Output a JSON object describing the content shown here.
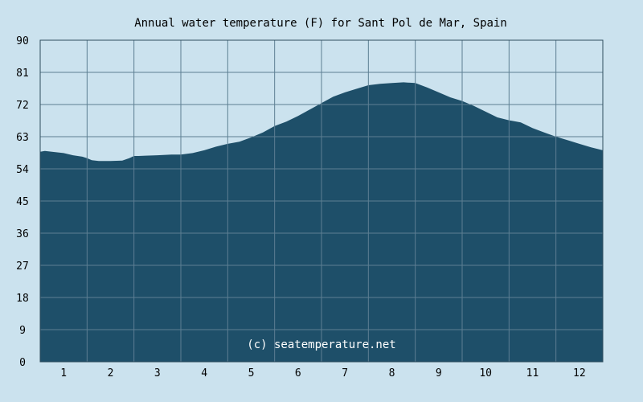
{
  "chart_data": {
    "type": "area",
    "title": "Annual water temperature (F) for Sant Pol de Mar, Spain",
    "watermark": "(c) seatemperature.net",
    "xlabel": "",
    "ylabel": "",
    "x_ticks": [
      "1",
      "2",
      "3",
      "4",
      "5",
      "6",
      "7",
      "8",
      "9",
      "10",
      "11",
      "12"
    ],
    "y_ticks": [
      0,
      9,
      18,
      27,
      36,
      45,
      54,
      63,
      72,
      81,
      90
    ],
    "xlim": [
      0.5,
      12.5
    ],
    "ylim": [
      0,
      90
    ],
    "grid": true,
    "colors": {
      "background": "#cbe2ee",
      "fill": "#1e4f69",
      "grid": "#5d7f93",
      "axis": "#2f4d5e",
      "text": "#000000",
      "watermark": "#ffffff"
    },
    "series": [
      {
        "x": [
          0.5,
          0.6,
          0.75,
          1.0,
          1.2,
          1.4,
          1.5,
          1.6,
          1.75,
          1.9,
          2.0,
          2.25,
          2.4,
          2.5,
          2.6,
          2.75,
          3.0,
          3.3,
          3.5,
          3.75,
          4.0,
          4.25,
          4.5,
          4.75,
          5.0,
          5.25,
          5.5,
          5.75,
          6.0,
          6.25,
          6.5,
          6.75,
          7.0,
          7.25,
          7.5,
          7.75,
          8.0,
          8.25,
          8.5,
          8.75,
          9.0,
          9.25,
          9.5,
          9.75,
          10.0,
          10.25,
          10.5,
          10.75,
          11.0,
          11.25,
          11.5,
          11.75,
          12.0,
          12.25,
          12.5
        ],
        "values": [
          58.8,
          59.0,
          58.8,
          58.4,
          57.8,
          57.4,
          57.0,
          56.4,
          56.2,
          56.2,
          56.2,
          56.3,
          57.0,
          57.6,
          57.6,
          57.7,
          57.8,
          58.0,
          58.0,
          58.4,
          59.2,
          60.2,
          61.0,
          61.6,
          62.8,
          64.2,
          66.0,
          67.2,
          68.8,
          70.6,
          72.4,
          74.2,
          75.4,
          76.4,
          77.4,
          77.8,
          78.0,
          78.2,
          78.0,
          76.8,
          75.4,
          74.0,
          73.0,
          71.6,
          70.0,
          68.4,
          67.6,
          67.0,
          65.4,
          64.2,
          63.0,
          62.0,
          61.0,
          60.0,
          59.2
        ]
      }
    ]
  }
}
